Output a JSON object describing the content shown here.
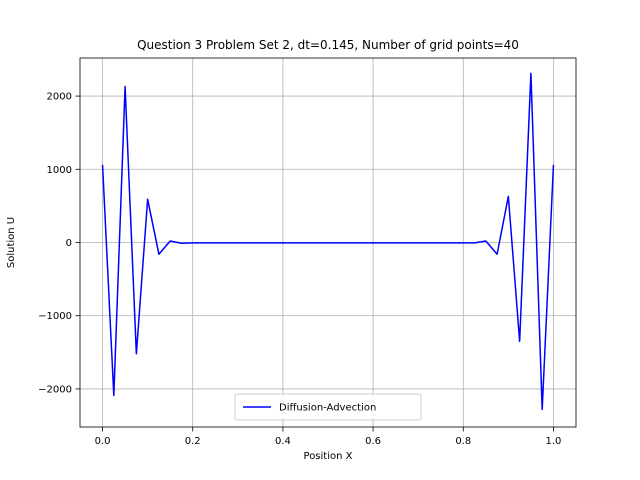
{
  "chart_data": {
    "type": "line",
    "title": "Question 3 Problem Set 2, dt=0.145, Number of grid points=40",
    "xlabel": "Position X",
    "ylabel": "Solution U",
    "xlim": [
      -0.05,
      1.05
    ],
    "ylim": [
      -2520,
      2520
    ],
    "xticks": [
      0.0,
      0.2,
      0.4,
      0.6,
      0.8,
      1.0
    ],
    "xtick_labels": [
      "0.0",
      "0.2",
      "0.4",
      "0.6",
      "0.8",
      "1.0"
    ],
    "yticks": [
      -2000,
      -1000,
      0,
      1000,
      2000
    ],
    "ytick_labels": [
      "−2000",
      "−1000",
      "0",
      "1000",
      "2000"
    ],
    "grid": true,
    "legend_position": "lower-center",
    "series": [
      {
        "name": "Diffusion-Advection",
        "color": "#0000ff",
        "x": [
          0.0,
          0.025,
          0.05,
          0.075,
          0.1,
          0.125,
          0.15,
          0.175,
          0.2,
          0.225,
          0.25,
          0.275,
          0.3,
          0.325,
          0.35,
          0.375,
          0.4,
          0.425,
          0.45,
          0.475,
          0.5,
          0.525,
          0.55,
          0.575,
          0.6,
          0.625,
          0.65,
          0.675,
          0.7,
          0.725,
          0.75,
          0.775,
          0.8,
          0.825,
          0.85,
          0.875,
          0.9,
          0.925,
          0.95,
          0.975,
          1.0
        ],
        "y": [
          1060,
          -2090,
          2130,
          -1520,
          590,
          -160,
          20,
          -10,
          -5,
          -5,
          -5,
          -5,
          -5,
          -5,
          -5,
          -5,
          -5,
          -5,
          -5,
          -5,
          -5,
          -5,
          -5,
          -5,
          -5,
          -5,
          -5,
          -5,
          -5,
          -5,
          -5,
          -5,
          -5,
          -5,
          20,
          -160,
          630,
          -1350,
          2310,
          -2280,
          1060
        ]
      }
    ]
  }
}
